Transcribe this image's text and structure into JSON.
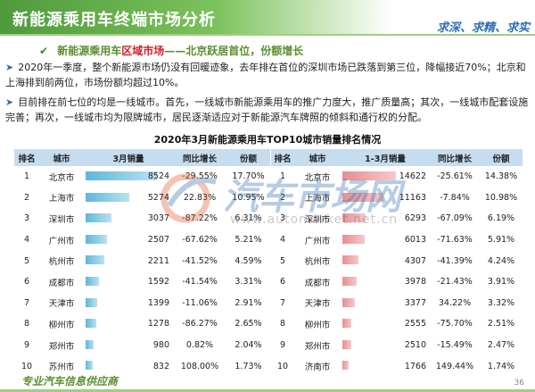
{
  "header": {
    "title": "新能源乘用车终端市场分析",
    "slogan": "求深、求精、求实"
  },
  "subheading": {
    "prefix": "新能源乘用车",
    "highlight": "区域市场",
    "suffix": "——北京跃居首位，份额增长"
  },
  "bullets": [
    "2020年一季度，整个新能源市场仍没有回暖迹象，去年排在首位的深圳市场已跌落到第三位，降幅接近70%；北京和上海排到前两位，市场份额均超过10%。",
    "目前排在前七位的均是一线城市。首先，一线城市新能源乘用车的推广力度大，推广质量高；其次，一线城市配套设施完善；再次，一线城市均为限牌城市，居民逐渐适应对于新能源汽车牌照的倾斜和通行权的分配。"
  ],
  "table_title": "2020年3月新能源乘用车TOP10城市销量排名情况",
  "watermark": {
    "name": "汽车市场网",
    "url": "www.automarket.net.cn"
  },
  "left_table": {
    "headers": [
      "排名",
      "城市",
      "3月销量",
      "同比增长",
      "份额"
    ],
    "max": 8524,
    "rows": [
      {
        "rank": "1",
        "city": "北京市",
        "sales": "8524",
        "value": 8524,
        "growth": "-29.55%",
        "share": "17.70%"
      },
      {
        "rank": "2",
        "city": "上海市",
        "sales": "5274",
        "value": 5274,
        "growth": "22.83%",
        "share": "10.95%"
      },
      {
        "rank": "3",
        "city": "深圳市",
        "sales": "3037",
        "value": 3037,
        "growth": "-87.22%",
        "share": "6.31%"
      },
      {
        "rank": "4",
        "city": "广州市",
        "sales": "2507",
        "value": 2507,
        "growth": "-67.62%",
        "share": "5.21%"
      },
      {
        "rank": "5",
        "city": "杭州市",
        "sales": "2211",
        "value": 2211,
        "growth": "-41.52%",
        "share": "4.59%"
      },
      {
        "rank": "6",
        "city": "成都市",
        "sales": "1592",
        "value": 1592,
        "growth": "-41.54%",
        "share": "3.31%"
      },
      {
        "rank": "7",
        "city": "天津市",
        "sales": "1399",
        "value": 1399,
        "growth": "-11.06%",
        "share": "2.91%"
      },
      {
        "rank": "8",
        "city": "柳州市",
        "sales": "1278",
        "value": 1278,
        "growth": "-86.27%",
        "share": "2.65%"
      },
      {
        "rank": "9",
        "city": "郑州市",
        "sales": "980",
        "value": 980,
        "growth": "0.82%",
        "share": "2.04%"
      },
      {
        "rank": "10",
        "city": "苏州市",
        "sales": "832",
        "value": 832,
        "growth": "108.00%",
        "share": "1.73%"
      }
    ]
  },
  "right_table": {
    "headers": [
      "排名",
      "城市",
      "1-3月销量",
      "同比增长",
      "份额"
    ],
    "max": 14622,
    "rows": [
      {
        "rank": "1",
        "city": "北京市",
        "sales": "14622",
        "value": 14622,
        "growth": "-25.61%",
        "share": "14.38%"
      },
      {
        "rank": "2",
        "city": "上海市",
        "sales": "11163",
        "value": 11163,
        "growth": "-7.84%",
        "share": "10.98%"
      },
      {
        "rank": "3",
        "city": "深圳市",
        "sales": "6293",
        "value": 6293,
        "growth": "-67.09%",
        "share": "6.19%"
      },
      {
        "rank": "4",
        "city": "广州市",
        "sales": "6013",
        "value": 6013,
        "growth": "-71.63%",
        "share": "5.91%"
      },
      {
        "rank": "5",
        "city": "杭州市",
        "sales": "4307",
        "value": 4307,
        "growth": "-41.39%",
        "share": "4.24%"
      },
      {
        "rank": "6",
        "city": "成都市",
        "sales": "3978",
        "value": 3978,
        "growth": "-21.43%",
        "share": "3.91%"
      },
      {
        "rank": "7",
        "city": "天津市",
        "sales": "3377",
        "value": 3377,
        "growth": "34.22%",
        "share": "3.32%"
      },
      {
        "rank": "8",
        "city": "柳州市",
        "sales": "2555",
        "value": 2555,
        "growth": "-75.70%",
        "share": "2.51%"
      },
      {
        "rank": "9",
        "city": "郑州市",
        "sales": "2510",
        "value": 2510,
        "growth": "-15.49%",
        "share": "2.47%"
      },
      {
        "rank": "10",
        "city": "济南市",
        "sales": "1766",
        "value": 1766,
        "growth": "149.44%",
        "share": "1.74%"
      }
    ]
  },
  "footer": {
    "text": "专业汽车信息供应商",
    "page": "36"
  },
  "colors": {
    "title_green": "#4f9a3c",
    "highlight_red": "#d4202a",
    "header_blue": "#c6dcef",
    "bar_blue": "#5fb6d9",
    "bar_pink": "#e98e91"
  }
}
